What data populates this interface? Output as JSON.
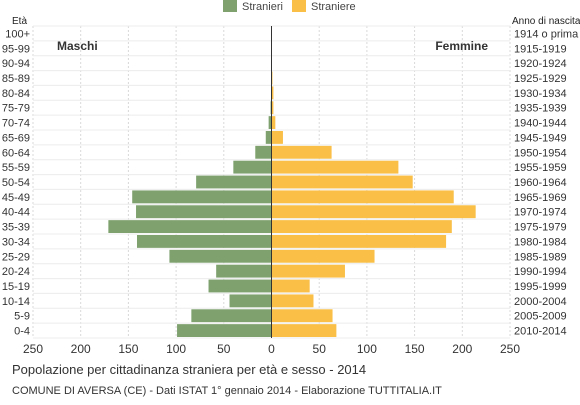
{
  "chart_data": {
    "type": "bar",
    "orientation": "horizontal-pyramid",
    "title": "Popolazione per cittadinanza straniera per età e sesso - 2014",
    "subtitle": "COMUNE DI AVERSA (CE) - Dati ISTAT 1° gennaio 2014 - Elaborazione TUTTITALIA.IT",
    "left_axis_title": "Età",
    "right_axis_title": "Anno di nascita",
    "left_side_label": "Maschi",
    "right_side_label": "Femmine",
    "xlim": [
      -250,
      250
    ],
    "x_ticks": [
      "250",
      "200",
      "150",
      "100",
      "50",
      "0",
      "50",
      "100",
      "150",
      "200",
      "250"
    ],
    "grid": true,
    "legend_position": "top-center",
    "age_groups": [
      "100+",
      "95-99",
      "90-94",
      "85-89",
      "80-84",
      "75-79",
      "70-74",
      "65-69",
      "60-64",
      "55-59",
      "50-54",
      "45-49",
      "40-44",
      "35-39",
      "30-34",
      "25-29",
      "20-24",
      "15-19",
      "10-14",
      "5-9",
      "0-4"
    ],
    "birth_years": [
      "1914 o prima",
      "1915-1919",
      "1920-1924",
      "1925-1929",
      "1930-1934",
      "1935-1939",
      "1940-1944",
      "1945-1949",
      "1950-1954",
      "1955-1959",
      "1960-1964",
      "1965-1969",
      "1970-1974",
      "1975-1979",
      "1980-1984",
      "1985-1989",
      "1990-1994",
      "1995-1999",
      "2000-2004",
      "2005-2009",
      "2010-2014"
    ],
    "series": [
      {
        "name": "Stranieri",
        "color": "#7ea16e",
        "side": "left",
        "values": [
          0,
          0,
          0,
          0,
          0,
          1,
          3,
          6,
          17,
          40,
          79,
          146,
          142,
          171,
          141,
          107,
          58,
          66,
          44,
          84,
          99
        ]
      },
      {
        "name": "Straniere",
        "color": "#f9bf47",
        "side": "right",
        "values": [
          0,
          0,
          0,
          1,
          2,
          2,
          4,
          12,
          63,
          133,
          148,
          191,
          214,
          189,
          183,
          108,
          77,
          40,
          44,
          64,
          68
        ]
      }
    ]
  }
}
